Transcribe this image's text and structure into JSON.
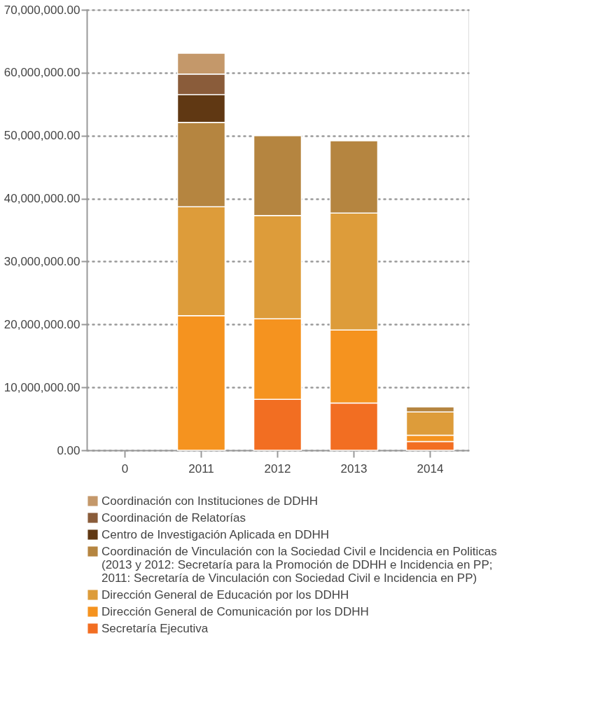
{
  "chart_data": {
    "type": "bar",
    "stacked": true,
    "grid": "y",
    "legend": "bottom",
    "categories": [
      "0",
      "2011",
      "2012",
      "2013",
      "2014"
    ],
    "ylim": [
      0,
      70000000
    ],
    "yticks": [
      {
        "value": 0,
        "label": "0.00"
      },
      {
        "value": 10000000,
        "label": "10,000,000.00"
      },
      {
        "value": 20000000,
        "label": "20,000,000.00"
      },
      {
        "value": 30000000,
        "label": "30,000,000.00"
      },
      {
        "value": 40000000,
        "label": "40,000,000.00"
      },
      {
        "value": 50000000,
        "label": "50,000,000.00"
      },
      {
        "value": 60000000,
        "label": "60,000,000.00"
      },
      {
        "value": 70000000,
        "label": "70,000,000.00"
      }
    ],
    "series": [
      {
        "name": "Secretaría Ejecutiva",
        "color": "#f26e22",
        "values": [
          null,
          null,
          8100000,
          7500000,
          1400000
        ]
      },
      {
        "name": "Dirección General de Comunicación por los DDHH",
        "color": "#f5931f",
        "values": [
          null,
          21400000,
          12800000,
          11600000,
          1000000
        ]
      },
      {
        "name": "Dirección General de Educación por los DDHH",
        "color": "#dd9c3a",
        "values": [
          null,
          17300000,
          16400000,
          18600000,
          3700000
        ]
      },
      {
        "name": "Coordinación de Vinculación con la Sociedad Civil e Incidencia en Politicas\n(2013 y 2012: Secretaría para la Promoción de DDHH e Incidencia en PP;\n2011: Secretaría de Vinculación con Sociedad Civil e Incidencia en PP)",
        "color": "#b58540",
        "values": [
          null,
          13400000,
          12700000,
          11500000,
          800000
        ]
      },
      {
        "name": "Centro de Investigación Aplicada en DDHH",
        "color": "#603813",
        "values": [
          null,
          4400000,
          null,
          null,
          null
        ]
      },
      {
        "name": "Coordinación de Relatorías",
        "color": "#8a5c3a",
        "values": [
          null,
          3300000,
          null,
          null,
          null
        ]
      },
      {
        "name": "Coordinación con Instituciones de DDHH",
        "color": "#c4986a",
        "values": [
          null,
          3300000,
          null,
          null,
          null
        ]
      }
    ]
  }
}
